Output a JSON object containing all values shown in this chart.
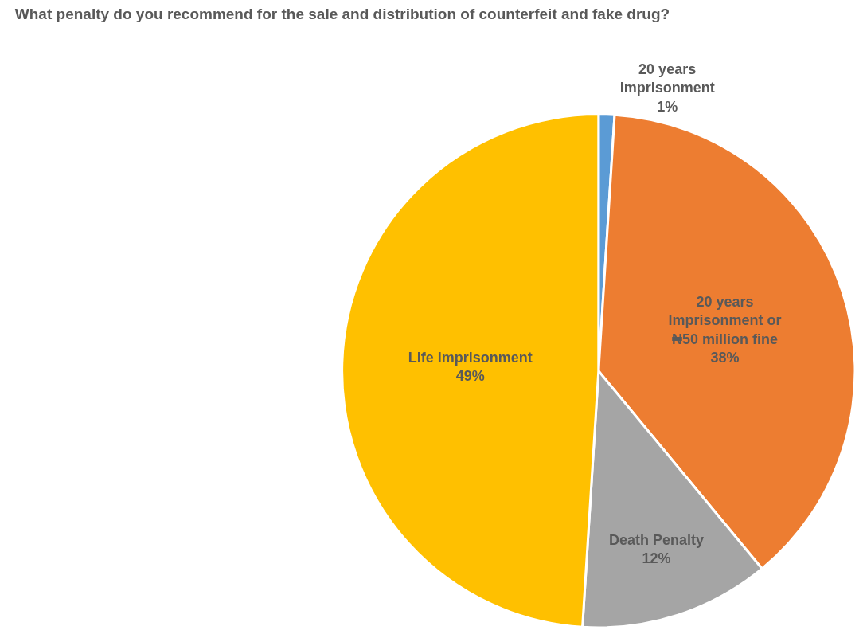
{
  "chart_data": {
    "type": "pie",
    "title": "What penalty do you recommend for the sale and distribution of counterfeit and fake drug?",
    "categories": [
      "20 years imprisonment",
      "20 years Imprisonment or ₦50 million fine",
      "Death Penalty",
      "Life Imprisonment"
    ],
    "values": [
      1,
      38,
      12,
      49
    ],
    "value_labels": [
      "1%",
      "38%",
      "12%",
      "49%"
    ],
    "colors": [
      "#5b9bd5",
      "#ed7d31",
      "#a5a5a5",
      "#ffc000"
    ],
    "legend": false
  }
}
